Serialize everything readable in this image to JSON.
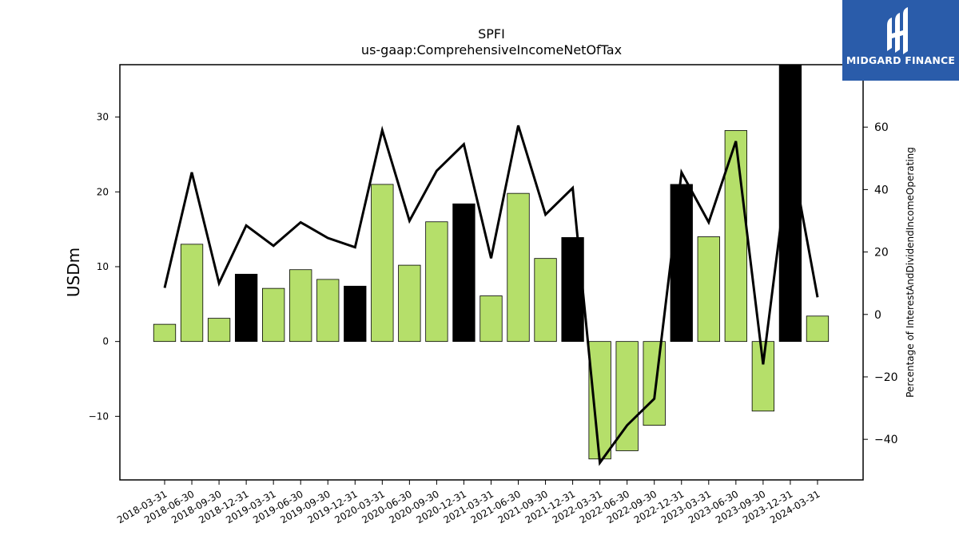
{
  "logo": {
    "text": "MIDGARD FINANCE"
  },
  "chart_data": {
    "type": "bar",
    "title": "SPFI",
    "subtitle": "us-gaap:ComprehensiveIncomeNetOfTax",
    "ylabel": "USDm",
    "y2label": "Percentage of InterestAndDividendIncomeOperating",
    "ylim": [
      -18.5,
      37
    ],
    "y2lim": [
      -53,
      80
    ],
    "yticks": [
      -10,
      0,
      10,
      20,
      30
    ],
    "y2ticks": [
      -40,
      -20,
      0,
      20,
      40,
      60
    ],
    "categories": [
      "2018-03-31",
      "2018-06-30",
      "2018-09-30",
      "2018-12-31",
      "2019-03-31",
      "2019-06-30",
      "2019-09-30",
      "2019-12-31",
      "2020-03-31",
      "2020-06-30",
      "2020-09-30",
      "2020-12-31",
      "2021-03-31",
      "2021-06-30",
      "2021-09-30",
      "2021-12-31",
      "2022-03-31",
      "2022-06-30",
      "2022-09-30",
      "2022-12-31",
      "2023-03-31",
      "2023-06-30",
      "2023-09-30",
      "2023-12-31",
      "2024-03-31"
    ],
    "series": [
      {
        "values": [
          2.3,
          13.0,
          3.1,
          9.0,
          7.1,
          9.6,
          8.3,
          7.4,
          21.0,
          10.2,
          16.0,
          18.4,
          6.1,
          19.8,
          11.1,
          13.9,
          -15.7,
          -14.6,
          -11.2,
          21.0,
          14.0,
          28.2,
          -9.3,
          37.0,
          3.4
        ],
        "bar_colors": [
          "#b5df6a",
          "#b5df6a",
          "#b5df6a",
          "#000000",
          "#b5df6a",
          "#b5df6a",
          "#b5df6a",
          "#000000",
          "#b5df6a",
          "#b5df6a",
          "#b5df6a",
          "#000000",
          "#b5df6a",
          "#b5df6a",
          "#b5df6a",
          "#000000",
          "#b5df6a",
          "#b5df6a",
          "#b5df6a",
          "#000000",
          "#b5df6a",
          "#b5df6a",
          "#b5df6a",
          "#000000",
          "#b5df6a"
        ]
      },
      {
        "axis": "right",
        "values": [
          8.5,
          45.5,
          10.0,
          28.5,
          22.0,
          29.5,
          24.5,
          21.5,
          59.0,
          30.0,
          46.0,
          54.5,
          18.0,
          60.5,
          32.0,
          40.5,
          -47.5,
          -35.5,
          -27.0,
          45.5,
          29.5,
          55.5,
          -16.0,
          53.0,
          5.5
        ]
      }
    ],
    "colors": {
      "bar_default": "#b5df6a",
      "bar_highlight": "#000000",
      "line": "#000000",
      "logo_bg": "#2a5caa"
    }
  }
}
